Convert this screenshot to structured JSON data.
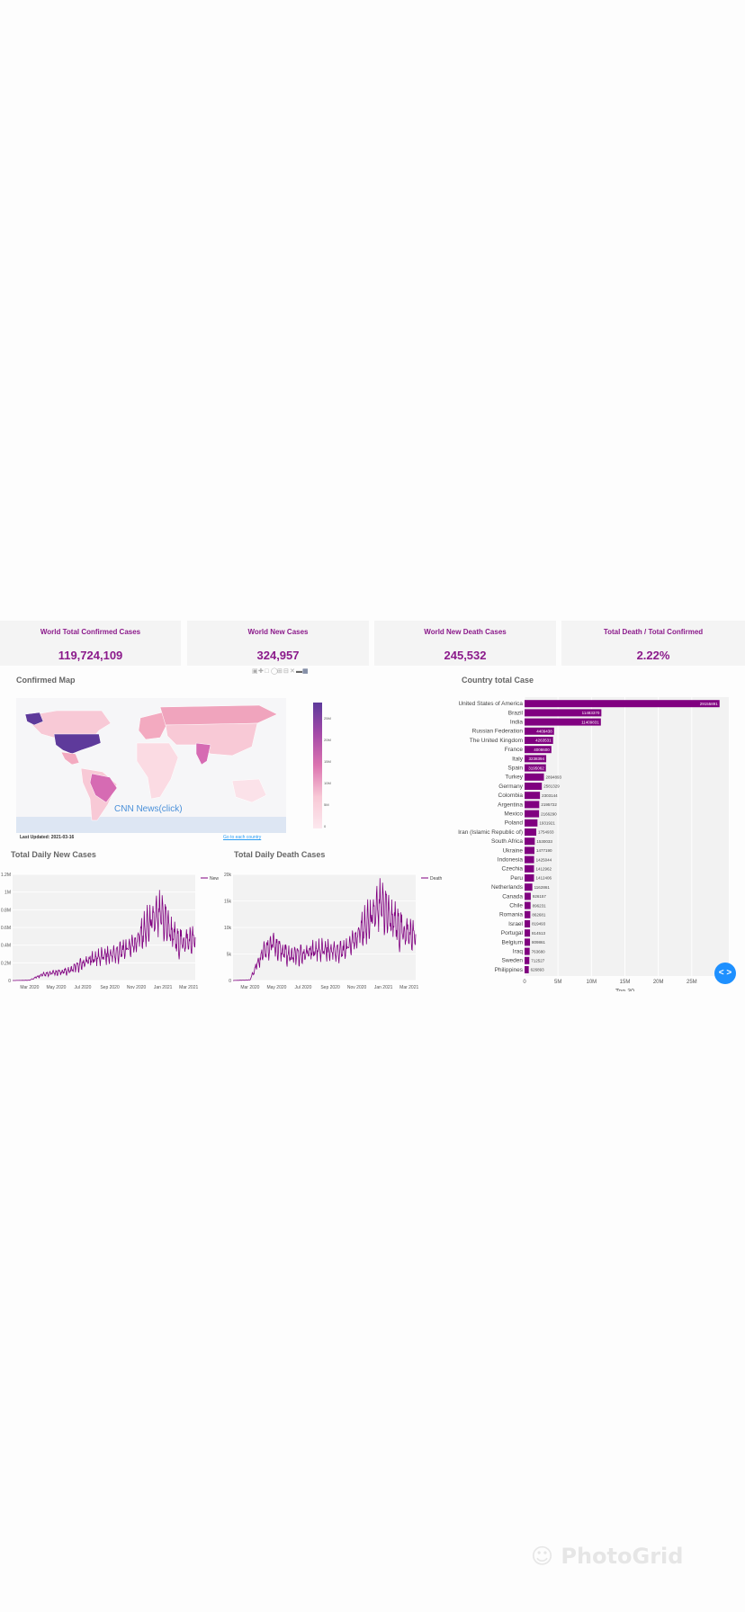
{
  "cards": [
    {
      "label": "World Total Confirmed Cases",
      "value": "119,724,109"
    },
    {
      "label": "World New Cases",
      "value": "324,957"
    },
    {
      "label": "World New Death Cases",
      "value": "245,532"
    },
    {
      "label": "Total Death / Total Confirmed",
      "value": "2.22%"
    }
  ],
  "map": {
    "title": "Confirmed Map",
    "news_link": "CNN News(click)",
    "last_updated": "Last Updated: 2021-03-16",
    "go_link": "Go to each country",
    "colorbar_ticks": [
      "25M",
      "20M",
      "15M",
      "10M",
      "5M",
      "0"
    ]
  },
  "toolbar_icons": [
    "camera-icon",
    "pan-icon",
    "select-icon",
    "lasso-icon",
    "zoom-in-icon",
    "zoom-out-icon",
    "reset-icon",
    "toggle-icon",
    "plotly-logo-icon"
  ],
  "colors": {
    "accent": "#8b1a8b",
    "bar": "#800080",
    "card_bg": "#f4f4f4",
    "nav": "#1e90ff"
  },
  "chart_data": [
    {
      "type": "bar",
      "orientation": "horizontal",
      "title": "Country total Case",
      "xlabel": "Top 30",
      "xlim": [
        0,
        30000000
      ],
      "x_ticks": [
        "0",
        "5M",
        "10M",
        "15M",
        "20M",
        "25M"
      ],
      "categories": [
        "United States of America",
        "Brazil",
        "India",
        "Russian Federation",
        "The United Kingdom",
        "France",
        "Italy",
        "Spain",
        "Turkey",
        "Germany",
        "Colombia",
        "Argentina",
        "Mexico",
        "Poland",
        "Iran (Islamic Republic of)",
        "South Africa",
        "Ukraine",
        "Indonesia",
        "Czechia",
        "Peru",
        "Netherlands",
        "Canada",
        "Chile",
        "Romania",
        "Israel",
        "Portugal",
        "Belgium",
        "Iraq",
        "Sweden",
        "Philippines"
      ],
      "values": [
        29155891,
        11483370,
        11409831,
        4409438,
        4263531,
        4008600,
        3238394,
        3195062,
        2894893,
        2581329,
        2303144,
        2195722,
        2166290,
        1931921,
        1754933,
        1530033,
        1477190,
        1425044,
        1412962,
        1412406,
        1162861,
        926157,
        896231,
        862681,
        819493,
        814513,
        809861,
        763680,
        712527,
        626893
      ],
      "value_labels": [
        "29155891",
        "11483370",
        "11409831",
        "4409438",
        "4263531",
        "4008600",
        "3238394",
        "3195062",
        "2894893",
        "2581329",
        "2303144",
        "2195722",
        "2166290",
        "1931921",
        "1754933",
        "1530033",
        "1477190",
        "1425044",
        "1412962",
        "1412406",
        "1162861",
        "926157",
        "896231",
        "862681",
        "819493",
        "814513",
        "809861",
        "763680",
        "712527",
        "626893"
      ]
    },
    {
      "type": "line",
      "title": "Total Daily New Cases",
      "legend": "New",
      "ylim": [
        0,
        1200000
      ],
      "y_ticks": [
        "0",
        "0.2M",
        "0.4M",
        "0.6M",
        "0.8M",
        "1M",
        "1.2M"
      ],
      "x_ticks": [
        "Mar 2020",
        "May 2020",
        "Jul 2020",
        "Sep 2020",
        "Nov 2020",
        "Jan 2021",
        "Mar 2021"
      ],
      "x_range": [
        "2020-01-22",
        "2021-03-16"
      ],
      "x_tick_dates": [
        "2020-03-01",
        "2020-05-01",
        "2020-07-01",
        "2020-09-01",
        "2020-11-01",
        "2021-01-01",
        "2021-03-01"
      ],
      "series_dates": [
        "2020-01-22",
        "2020-03-01",
        "2020-04-01",
        "2020-05-01",
        "2020-06-01",
        "2020-07-01",
        "2020-08-01",
        "2020-09-01",
        "2020-10-01",
        "2020-11-01",
        "2020-12-01",
        "2021-01-01",
        "2021-02-01",
        "2021-03-16"
      ],
      "series_values": [
        0,
        3000,
        75000,
        90000,
        110000,
        190000,
        260000,
        280000,
        330000,
        450000,
        620000,
        730000,
        430000,
        450000
      ]
    },
    {
      "type": "line",
      "title": "Total Daily Death Cases",
      "legend": "Death",
      "ylim": [
        0,
        20000
      ],
      "y_ticks": [
        "0",
        "5k",
        "10k",
        "15k",
        "20k"
      ],
      "x_ticks": [
        "Mar 2020",
        "May 2020",
        "Jul 2020",
        "Sep 2020",
        "Nov 2020",
        "Jan 2021",
        "Mar 2021"
      ],
      "x_range": [
        "2020-01-22",
        "2021-03-16"
      ],
      "x_tick_dates": [
        "2020-03-01",
        "2020-05-01",
        "2020-07-01",
        "2020-09-01",
        "2020-11-01",
        "2021-01-01",
        "2021-03-01"
      ],
      "series_dates": [
        "2020-01-22",
        "2020-03-01",
        "2020-04-01",
        "2020-04-20",
        "2020-06-01",
        "2020-07-01",
        "2020-08-01",
        "2020-09-01",
        "2020-10-01",
        "2020-11-01",
        "2020-12-01",
        "2021-01-01",
        "2021-02-01",
        "2021-03-16"
      ],
      "series_values": [
        0,
        100,
        6000,
        7000,
        4500,
        4800,
        5800,
        5500,
        5400,
        8500,
        11000,
        14000,
        10000,
        8000
      ]
    }
  ]
}
